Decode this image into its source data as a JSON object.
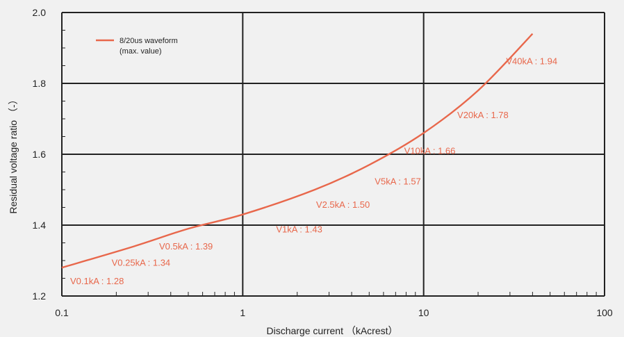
{
  "chart_data": {
    "type": "line",
    "xscale": "log",
    "xlim": [
      0.1,
      100
    ],
    "ylim": [
      1.2,
      2.0
    ],
    "xticks": [
      0.1,
      1,
      10,
      100
    ],
    "xtick_labels": [
      "0.1",
      "1",
      "10",
      "100"
    ],
    "yticks": [
      1.2,
      1.4,
      1.6,
      1.8,
      2.0
    ],
    "ytick_labels": [
      "1.2",
      "1.4",
      "1.6",
      "1.8",
      "2.0"
    ],
    "xlabel": "Discharge current （kAcrest）",
    "ylabel": "Residual voltage ratio （-）",
    "grid": true,
    "legend_position": "top-left",
    "series": [
      {
        "name": "8/20us waveform",
        "name_line2": "(max. value)",
        "color": "#e8674b",
        "x": [
          0.1,
          0.25,
          0.5,
          1,
          2.5,
          5,
          10,
          20,
          40
        ],
        "y": [
          1.28,
          1.34,
          1.39,
          1.43,
          1.5,
          1.57,
          1.66,
          1.78,
          1.94
        ]
      }
    ],
    "annotations": [
      {
        "text": "V0.1kA : 1.28",
        "x": 0.1,
        "y": 1.28
      },
      {
        "text": "V0.25kA : 1.34",
        "x": 0.25,
        "y": 1.34
      },
      {
        "text": "V0.5kA : 1.39",
        "x": 0.5,
        "y": 1.39
      },
      {
        "text": "V1kA : 1.43",
        "x": 1,
        "y": 1.43
      },
      {
        "text": "V2.5kA : 1.50",
        "x": 2.5,
        "y": 1.5
      },
      {
        "text": "V5kA : 1.57",
        "x": 5,
        "y": 1.57
      },
      {
        "text": "V10kA : 1.66",
        "x": 10,
        "y": 1.66
      },
      {
        "text": "V20kA : 1.78",
        "x": 20,
        "y": 1.78
      },
      {
        "text": "V40kA : 1.94",
        "x": 40,
        "y": 1.94
      }
    ]
  }
}
